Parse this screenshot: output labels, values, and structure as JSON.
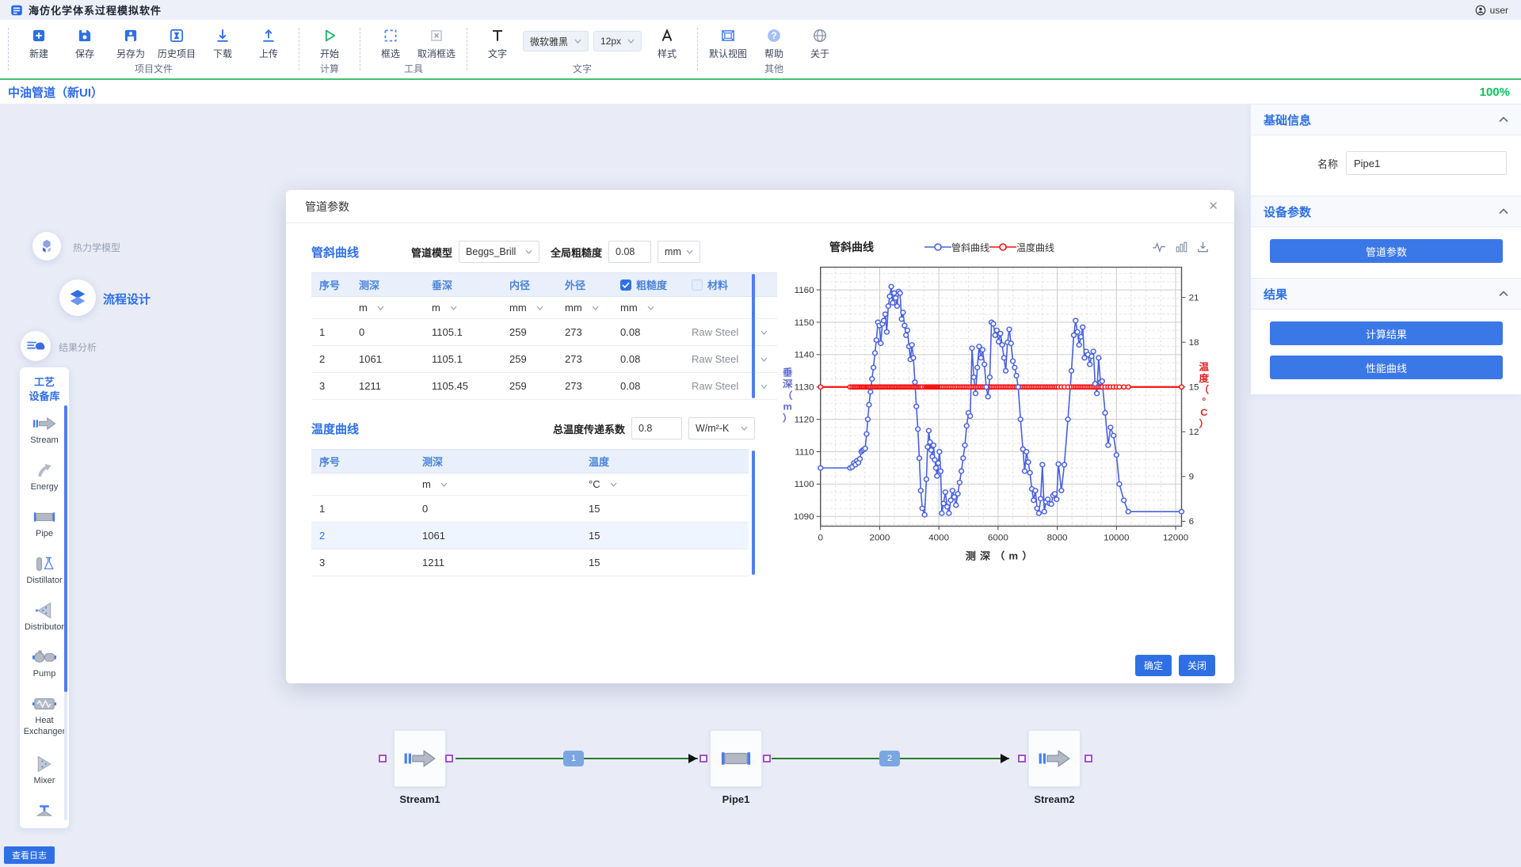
{
  "titlebar": {
    "app_title": "海仿化学体系过程模拟软件",
    "user": "user"
  },
  "toolbar": {
    "groups": [
      {
        "caption": "项目文件",
        "items": [
          {
            "label": "新建",
            "icon": "new"
          },
          {
            "label": "保存",
            "icon": "save"
          },
          {
            "label": "另存为",
            "icon": "save-as"
          },
          {
            "label": "历史项目",
            "icon": "history"
          },
          {
            "label": "下载",
            "icon": "download"
          },
          {
            "label": "上传",
            "icon": "upload"
          }
        ]
      },
      {
        "caption": "计算",
        "items": [
          {
            "label": "开始",
            "icon": "play"
          }
        ]
      },
      {
        "caption": "工具",
        "items": [
          {
            "label": "框选",
            "icon": "marquee"
          },
          {
            "label": "取消框选",
            "icon": "marquee-cancel"
          }
        ]
      },
      {
        "caption": "文字",
        "items": [
          {
            "label": "文字",
            "icon": "text"
          },
          {
            "type": "select",
            "value": "微软雅黑",
            "name": "font-family-select"
          },
          {
            "type": "select",
            "value": "12px",
            "name": "font-size-select"
          },
          {
            "label": "样式",
            "icon": "style"
          }
        ]
      },
      {
        "caption": "其他",
        "items": [
          {
            "label": "默认视图",
            "icon": "default-view"
          },
          {
            "label": "帮助",
            "icon": "help"
          },
          {
            "label": "关于",
            "icon": "about"
          }
        ]
      }
    ]
  },
  "tabbar": {
    "tab": "中油管道（新UI）",
    "zoom": "100%"
  },
  "nav": [
    {
      "label": "热力学模型",
      "icon": "thermo"
    },
    {
      "label": "流程设计",
      "icon": "flow"
    },
    {
      "label": "结果分析",
      "icon": "result"
    }
  ],
  "library": {
    "title_line1": "工艺",
    "title_line2": "设备库",
    "items": [
      {
        "name": "Stream",
        "icon": "stream"
      },
      {
        "name": "Energy",
        "icon": "energy"
      },
      {
        "name": "Pipe",
        "icon": "pipe"
      },
      {
        "name": "Distillator",
        "icon": "distillator"
      },
      {
        "name": "Distributor",
        "icon": "distributor"
      },
      {
        "name": "Pump",
        "icon": "pump"
      },
      {
        "name": "Heat Exchanger",
        "icon": "heat-exchanger"
      },
      {
        "name": "Mixer",
        "icon": "mixer"
      },
      {
        "name": "",
        "icon": "valve"
      }
    ]
  },
  "dialog": {
    "title": "管道参数",
    "incline": {
      "heading": "管斜曲线",
      "model_label": "管道模型",
      "model_value": "Beggs_Brill",
      "roughness_label": "全局粗糙度",
      "roughness_value": "0.08",
      "roughness_unit": "mm",
      "table": {
        "headers": [
          "序号",
          "测深",
          "垂深",
          "内径",
          "外径",
          "粗糙度",
          "材料"
        ],
        "roughness_checked": true,
        "material_checked": false,
        "units": [
          "",
          "m",
          "m",
          "mm",
          "mm",
          "mm",
          ""
        ],
        "rows": [
          [
            "1",
            "0",
            "1105.1",
            "259",
            "273",
            "0.08",
            "Raw Steel"
          ],
          [
            "2",
            "1061",
            "1105.1",
            "259",
            "273",
            "0.08",
            "Raw Steel"
          ],
          [
            "3",
            "1211",
            "1105.45",
            "259",
            "273",
            "0.08",
            "Raw Steel"
          ]
        ]
      }
    },
    "temperature": {
      "heading": "温度曲线",
      "coeff_label": "总温度传递系数",
      "coeff_value": "0.8",
      "coeff_unit": "W/m²-K",
      "table": {
        "headers": [
          "序号",
          "测深",
          "温度"
        ],
        "units": [
          "",
          "m",
          "°C"
        ],
        "rows": [
          [
            "1",
            "0",
            "15"
          ],
          [
            "2",
            "1061",
            "15"
          ],
          [
            "3",
            "1211",
            "15"
          ]
        ],
        "selected_row": 1
      }
    },
    "footer": {
      "ok": "确定",
      "close": "关闭"
    }
  },
  "chart_data": {
    "type": "line",
    "title": "管斜曲线",
    "xlabel": "测深（m）",
    "ylabel_left": "垂深（m）",
    "ylabel_right": "温度（°C）",
    "x_ticks": [
      0,
      2000,
      4000,
      6000,
      8000,
      10000,
      12000
    ],
    "x_range": [
      0,
      12200
    ],
    "yleft_ticks": [
      1090,
      1100,
      1110,
      1120,
      1130,
      1140,
      1150,
      1160
    ],
    "yleft_range": [
      1087,
      1167
    ],
    "yright_ticks": [
      6,
      9,
      12,
      15,
      18,
      21
    ],
    "grid": "major-solid minor-dashed",
    "legend_position": "top",
    "colors": {
      "incline": "#4961de",
      "temperature": "#f41212"
    },
    "series": [
      {
        "name": "管斜曲线",
        "axis": "left",
        "points": [
          [
            0,
            1105
          ],
          [
            1000,
            1105
          ],
          [
            1070,
            1105.3
          ],
          [
            1130,
            1106.5
          ],
          [
            1180,
            1106
          ],
          [
            1230,
            1107.2
          ],
          [
            1280,
            1106.6
          ],
          [
            1330,
            1107.8
          ],
          [
            1380,
            1110
          ],
          [
            1420,
            1110.4
          ],
          [
            1460,
            1110.7
          ],
          [
            1510,
            1111
          ],
          [
            1560,
            1115.5
          ],
          [
            1600,
            1120
          ],
          [
            1640,
            1124.5
          ],
          [
            1690,
            1128.5
          ],
          [
            1740,
            1132.5
          ],
          [
            1790,
            1136
          ],
          [
            1840,
            1140.5
          ],
          [
            1890,
            1144.5
          ],
          [
            1940,
            1150
          ],
          [
            1990,
            1149
          ],
          [
            2040,
            1143.5
          ],
          [
            2090,
            1149.5
          ],
          [
            2140,
            1150.5
          ],
          [
            2190,
            1152.5
          ],
          [
            2240,
            1147
          ],
          [
            2290,
            1155
          ],
          [
            2340,
            1158
          ],
          [
            2390,
            1161
          ],
          [
            2440,
            1156
          ],
          [
            2490,
            1159
          ],
          [
            2540,
            1157.5
          ],
          [
            2590,
            1155
          ],
          [
            2640,
            1159.5
          ],
          [
            2690,
            1159
          ],
          [
            2740,
            1151
          ],
          [
            2790,
            1153
          ],
          [
            2840,
            1149
          ],
          [
            2890,
            1146
          ],
          [
            2940,
            1147.5
          ],
          [
            2990,
            1142.5
          ],
          [
            3040,
            1138.5
          ],
          [
            3090,
            1143
          ],
          [
            3140,
            1139
          ],
          [
            3190,
            1131.5
          ],
          [
            3240,
            1124
          ],
          [
            3290,
            1117
          ],
          [
            3340,
            1108
          ],
          [
            3390,
            1098
          ],
          [
            3440,
            1092.5
          ],
          [
            3520,
            1090.5
          ],
          [
            3580,
            1101.5
          ],
          [
            3620,
            1111.5
          ],
          [
            3660,
            1116.5
          ],
          [
            3700,
            1113
          ],
          [
            3740,
            1110.5
          ],
          [
            3780,
            1108.5
          ],
          [
            3820,
            1112
          ],
          [
            3860,
            1107.5
          ],
          [
            3900,
            1105
          ],
          [
            3940,
            1102.5
          ],
          [
            3980,
            1106.5
          ],
          [
            4020,
            1110
          ],
          [
            4060,
            1104
          ],
          [
            4100,
            1091
          ],
          [
            4160,
            1094
          ],
          [
            4220,
            1097.5
          ],
          [
            4280,
            1093
          ],
          [
            4340,
            1091
          ],
          [
            4400,
            1095
          ],
          [
            4460,
            1098
          ],
          [
            4520,
            1096
          ],
          [
            4580,
            1093.5
          ],
          [
            4640,
            1097
          ],
          [
            4700,
            1100.5
          ],
          [
            4760,
            1104
          ],
          [
            4820,
            1108
          ],
          [
            4880,
            1112
          ],
          [
            4940,
            1118
          ],
          [
            5000,
            1122
          ],
          [
            5060,
            1121
          ],
          [
            5120,
            1142
          ],
          [
            5180,
            1133
          ],
          [
            5240,
            1128
          ],
          [
            5300,
            1136
          ],
          [
            5360,
            1142.5
          ],
          [
            5420,
            1139
          ],
          [
            5480,
            1141.5
          ],
          [
            5540,
            1137
          ],
          [
            5600,
            1130
          ],
          [
            5660,
            1127
          ],
          [
            5720,
            1133
          ],
          [
            5780,
            1150
          ],
          [
            5840,
            1149.5
          ],
          [
            5900,
            1146
          ],
          [
            5960,
            1147.5
          ],
          [
            6020,
            1144
          ],
          [
            6080,
            1146.5
          ],
          [
            6140,
            1143
          ],
          [
            6200,
            1139
          ],
          [
            6260,
            1135
          ],
          [
            6320,
            1143.8
          ],
          [
            6380,
            1147.8
          ],
          [
            6440,
            1143.5
          ],
          [
            6500,
            1138
          ],
          [
            6560,
            1136
          ],
          [
            6620,
            1133.5
          ],
          [
            6680,
            1130
          ],
          [
            6760,
            1120
          ],
          [
            6840,
            1110.8
          ],
          [
            6900,
            1104
          ],
          [
            6960,
            1110
          ],
          [
            7020,
            1106.8
          ],
          [
            7080,
            1103.5
          ],
          [
            7140,
            1098.5
          ],
          [
            7200,
            1095
          ],
          [
            7260,
            1098
          ],
          [
            7320,
            1092.5
          ],
          [
            7380,
            1091
          ],
          [
            7440,
            1095.5
          ],
          [
            7500,
            1106
          ],
          [
            7560,
            1091.5
          ],
          [
            7620,
            1094.5
          ],
          [
            7680,
            1095.3
          ],
          [
            7740,
            1094
          ],
          [
            7800,
            1093.8
          ],
          [
            7860,
            1096.5
          ],
          [
            7920,
            1097
          ],
          [
            7980,
            1095.3
          ],
          [
            8040,
            1106.2
          ],
          [
            8140,
            1098
          ],
          [
            8240,
            1106
          ],
          [
            8360,
            1120
          ],
          [
            8480,
            1135
          ],
          [
            8560,
            1146
          ],
          [
            8620,
            1150.5
          ],
          [
            8680,
            1147
          ],
          [
            8740,
            1143
          ],
          [
            8800,
            1145.5
          ],
          [
            8860,
            1148.5
          ],
          [
            8920,
            1139
          ],
          [
            8980,
            1141
          ],
          [
            9040,
            1140
          ],
          [
            9100,
            1137
          ],
          [
            9160,
            1139.5
          ],
          [
            9220,
            1141
          ],
          [
            9280,
            1131
          ],
          [
            9340,
            1128
          ],
          [
            9400,
            1139
          ],
          [
            9460,
            1131.5
          ],
          [
            9520,
            1131.8
          ],
          [
            9620,
            1122
          ],
          [
            9720,
            1112
          ],
          [
            9800,
            1117.5
          ],
          [
            9900,
            1115
          ],
          [
            10000,
            1109
          ],
          [
            10100,
            1100
          ],
          [
            10250,
            1095
          ],
          [
            10400,
            1091.5
          ],
          [
            12200,
            1091.5
          ]
        ]
      },
      {
        "name": "温度曲线",
        "axis": "right",
        "constant": 15
      }
    ],
    "temp_align": {
      "right_value": 15,
      "left_equivalent": 1130,
      "degC_per_10m": 2.17
    }
  },
  "right_panel": {
    "sections": [
      {
        "title": "基础信息"
      },
      {
        "title": "设备参数"
      },
      {
        "title": "结果"
      }
    ],
    "name_label": "名称",
    "name_value": "Pipe1",
    "device_button": "管道参数",
    "result_buttons": [
      "计算结果",
      "性能曲线"
    ]
  },
  "flowsheet": {
    "nodes": [
      {
        "label": "Stream1",
        "type": "stream"
      },
      {
        "label": "Pipe1",
        "type": "pipe"
      },
      {
        "label": "Stream2",
        "type": "stream"
      }
    ],
    "edges": [
      {
        "label": "1"
      },
      {
        "label": "2"
      }
    ]
  },
  "footer": {
    "log_button": "查看日志"
  }
}
